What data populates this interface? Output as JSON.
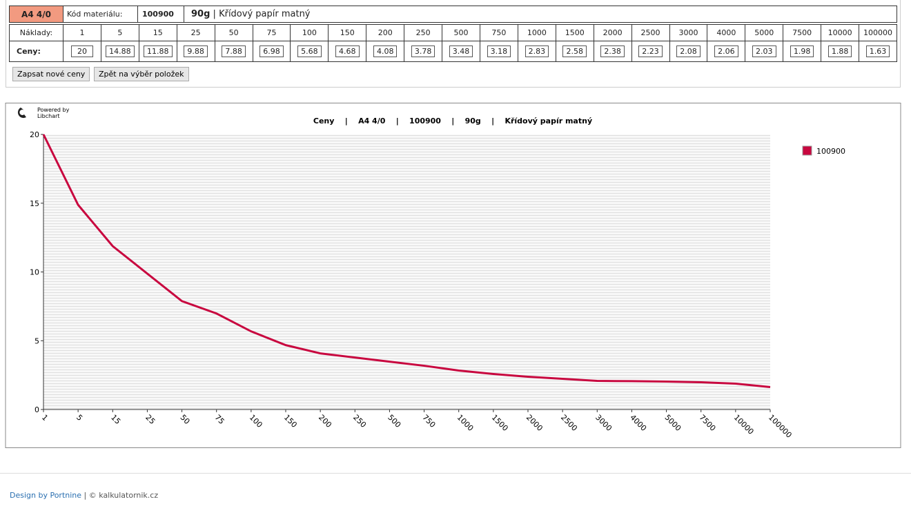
{
  "header": {
    "code": "A4 4/0",
    "material_label": "Kód materiálu:",
    "material_code": "100900",
    "weight": "90g",
    "separator": "|",
    "material_name": "Křídový papír matný"
  },
  "table": {
    "quantities_label": "Náklady:",
    "prices_label": "Ceny:"
  },
  "buttons": [
    "Zapsat nové ceny",
    "Zpět na výběr položek"
  ],
  "chart_data": {
    "type": "line",
    "title": "Ceny    |    A4 4/0    |    100900    |    90g    |    Křídový papír matný",
    "powered_by": "Powered by",
    "powered_name": "Libchart",
    "categories": [
      "1",
      "5",
      "15",
      "25",
      "50",
      "75",
      "100",
      "150",
      "200",
      "250",
      "500",
      "750",
      "1000",
      "1500",
      "2000",
      "2500",
      "3000",
      "4000",
      "5000",
      "7500",
      "10000",
      "100000"
    ],
    "series": [
      {
        "name": "100900",
        "color": "#c8073f",
        "values": [
          20,
          14.88,
          11.88,
          9.88,
          7.88,
          6.98,
          5.68,
          4.68,
          4.08,
          3.78,
          3.48,
          3.18,
          2.83,
          2.58,
          2.38,
          2.23,
          2.08,
          2.06,
          2.03,
          1.98,
          1.88,
          1.63
        ]
      }
    ],
    "ylim": [
      0,
      20
    ],
    "yticks": [
      0,
      5,
      10,
      15,
      20
    ]
  },
  "footer": {
    "credit": "Design by Portnine",
    "separator": "|",
    "copyright": "© kalkulatornik.cz"
  }
}
